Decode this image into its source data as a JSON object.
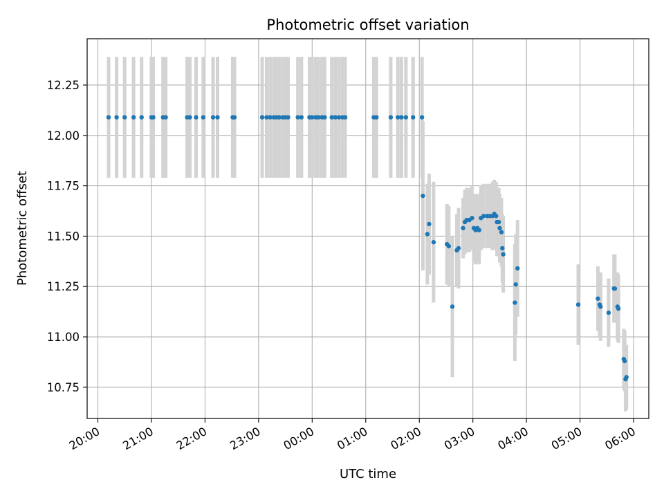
{
  "chart_data": {
    "type": "scatter",
    "title": "Photometric offset variation",
    "xlabel": "UTC time",
    "ylabel": "Photometric offset",
    "x_is_time": true,
    "x_tick_labels": [
      "20:00",
      "21:00",
      "22:00",
      "23:00",
      "00:00",
      "01:00",
      "02:00",
      "03:00",
      "04:00",
      "05:00",
      "06:00"
    ],
    "y_tick_labels": [
      "10.75",
      "11.00",
      "11.25",
      "11.50",
      "11.75",
      "12.00",
      "12.25"
    ],
    "xlim": [
      "19:48",
      "06:17"
    ],
    "ylim": [
      10.595,
      12.48
    ],
    "grid": true,
    "point_color": "#1f77b4",
    "errorbar_color": "#d3d3d3",
    "points": [
      {
        "x": "20:12",
        "y": 12.09,
        "err": 0.3
      },
      {
        "x": "20:21",
        "y": 12.09,
        "err": 0.3
      },
      {
        "x": "20:30",
        "y": 12.09,
        "err": 0.3
      },
      {
        "x": "20:40",
        "y": 12.09,
        "err": 0.3
      },
      {
        "x": "20:49",
        "y": 12.09,
        "err": 0.3
      },
      {
        "x": "21:00",
        "y": 12.09,
        "err": 0.3
      },
      {
        "x": "21:02",
        "y": 12.09,
        "err": 0.3
      },
      {
        "x": "21:13",
        "y": 12.09,
        "err": 0.3
      },
      {
        "x": "21:16",
        "y": 12.09,
        "err": 0.3
      },
      {
        "x": "21:40",
        "y": 12.09,
        "err": 0.3
      },
      {
        "x": "21:43",
        "y": 12.09,
        "err": 0.3
      },
      {
        "x": "21:50",
        "y": 12.09,
        "err": 0.3
      },
      {
        "x": "21:58",
        "y": 12.09,
        "err": 0.3
      },
      {
        "x": "22:09",
        "y": 12.09,
        "err": 0.3
      },
      {
        "x": "22:14",
        "y": 12.09,
        "err": 0.3
      },
      {
        "x": "22:31",
        "y": 12.09,
        "err": 0.3
      },
      {
        "x": "22:33",
        "y": 12.09,
        "err": 0.3
      },
      {
        "x": "23:04",
        "y": 12.09,
        "err": 0.3
      },
      {
        "x": "23:09",
        "y": 12.09,
        "err": 0.3
      },
      {
        "x": "23:13",
        "y": 12.09,
        "err": 0.3
      },
      {
        "x": "23:17",
        "y": 12.09,
        "err": 0.3
      },
      {
        "x": "23:20",
        "y": 12.09,
        "err": 0.3
      },
      {
        "x": "23:23",
        "y": 12.09,
        "err": 0.3
      },
      {
        "x": "23:27",
        "y": 12.09,
        "err": 0.3
      },
      {
        "x": "23:30",
        "y": 12.09,
        "err": 0.3
      },
      {
        "x": "23:33",
        "y": 12.09,
        "err": 0.3
      },
      {
        "x": "23:44",
        "y": 12.09,
        "err": 0.3
      },
      {
        "x": "23:48",
        "y": 12.09,
        "err": 0.3
      },
      {
        "x": "23:57",
        "y": 12.09,
        "err": 0.3
      },
      {
        "x": "00:00",
        "y": 12.09,
        "err": 0.3
      },
      {
        "x": "00:04",
        "y": 12.09,
        "err": 0.3
      },
      {
        "x": "00:07",
        "y": 12.09,
        "err": 0.3
      },
      {
        "x": "00:11",
        "y": 12.09,
        "err": 0.3
      },
      {
        "x": "00:14",
        "y": 12.09,
        "err": 0.3
      },
      {
        "x": "00:22",
        "y": 12.09,
        "err": 0.3
      },
      {
        "x": "00:26",
        "y": 12.09,
        "err": 0.3
      },
      {
        "x": "00:30",
        "y": 12.09,
        "err": 0.3
      },
      {
        "x": "00:34",
        "y": 12.09,
        "err": 0.3
      },
      {
        "x": "00:37",
        "y": 12.09,
        "err": 0.3
      },
      {
        "x": "01:09",
        "y": 12.09,
        "err": 0.3
      },
      {
        "x": "01:12",
        "y": 12.09,
        "err": 0.3
      },
      {
        "x": "01:28",
        "y": 12.09,
        "err": 0.3
      },
      {
        "x": "01:36",
        "y": 12.09,
        "err": 0.3
      },
      {
        "x": "01:40",
        "y": 12.09,
        "err": 0.3
      },
      {
        "x": "01:45",
        "y": 12.09,
        "err": 0.3
      },
      {
        "x": "01:53",
        "y": 12.09,
        "err": 0.3
      },
      {
        "x": "02:03",
        "y": 12.09,
        "err": 0.3
      },
      {
        "x": "02:04",
        "y": 11.7,
        "err": 0.37
      },
      {
        "x": "02:09",
        "y": 11.51,
        "err": 0.25
      },
      {
        "x": "02:11",
        "y": 11.56,
        "err": 0.25
      },
      {
        "x": "02:16",
        "y": 11.47,
        "err": 0.3
      },
      {
        "x": "02:31",
        "y": 11.46,
        "err": 0.2
      },
      {
        "x": "02:33",
        "y": 11.45,
        "err": 0.2
      },
      {
        "x": "02:37",
        "y": 11.15,
        "err": 0.35
      },
      {
        "x": "02:42",
        "y": 11.43,
        "err": 0.18
      },
      {
        "x": "02:44",
        "y": 11.44,
        "err": 0.2
      },
      {
        "x": "02:49",
        "y": 11.54,
        "err": 0.15
      },
      {
        "x": "02:51",
        "y": 11.57,
        "err": 0.16
      },
      {
        "x": "02:53",
        "y": 11.58,
        "err": 0.16
      },
      {
        "x": "02:56",
        "y": 11.58,
        "err": 0.16
      },
      {
        "x": "02:59",
        "y": 11.59,
        "err": 0.16
      },
      {
        "x": "03:01",
        "y": 11.54,
        "err": 0.17
      },
      {
        "x": "03:03",
        "y": 11.53,
        "err": 0.17
      },
      {
        "x": "03:05",
        "y": 11.54,
        "err": 0.17
      },
      {
        "x": "03:07",
        "y": 11.53,
        "err": 0.17
      },
      {
        "x": "03:09",
        "y": 11.59,
        "err": 0.16
      },
      {
        "x": "03:12",
        "y": 11.6,
        "err": 0.16
      },
      {
        "x": "03:16",
        "y": 11.6,
        "err": 0.16
      },
      {
        "x": "03:19",
        "y": 11.6,
        "err": 0.16
      },
      {
        "x": "03:22",
        "y": 11.6,
        "err": 0.17
      },
      {
        "x": "03:24",
        "y": 11.61,
        "err": 0.17
      },
      {
        "x": "03:26",
        "y": 11.6,
        "err": 0.17
      },
      {
        "x": "03:27",
        "y": 11.57,
        "err": 0.17
      },
      {
        "x": "03:29",
        "y": 11.57,
        "err": 0.17
      },
      {
        "x": "03:30",
        "y": 11.54,
        "err": 0.17
      },
      {
        "x": "03:32",
        "y": 11.52,
        "err": 0.17
      },
      {
        "x": "03:33",
        "y": 11.44,
        "err": 0.17
      },
      {
        "x": "03:34",
        "y": 11.41,
        "err": 0.19
      },
      {
        "x": "03:47",
        "y": 11.17,
        "err": 0.29
      },
      {
        "x": "03:48",
        "y": 11.26,
        "err": 0.25
      },
      {
        "x": "03:50",
        "y": 11.34,
        "err": 0.24
      },
      {
        "x": "04:58",
        "y": 11.16,
        "err": 0.2
      },
      {
        "x": "05:20",
        "y": 11.19,
        "err": 0.16
      },
      {
        "x": "05:22",
        "y": 11.16,
        "err": 0.16
      },
      {
        "x": "05:23",
        "y": 11.15,
        "err": 0.17
      },
      {
        "x": "05:32",
        "y": 11.12,
        "err": 0.17
      },
      {
        "x": "05:38",
        "y": 11.24,
        "err": 0.17
      },
      {
        "x": "05:39",
        "y": 11.24,
        "err": 0.17
      },
      {
        "x": "05:42",
        "y": 11.15,
        "err": 0.17
      },
      {
        "x": "05:43",
        "y": 11.14,
        "err": 0.17
      },
      {
        "x": "05:49",
        "y": 10.89,
        "err": 0.15
      },
      {
        "x": "05:50",
        "y": 10.88,
        "err": 0.15
      },
      {
        "x": "05:51",
        "y": 10.79,
        "err": 0.16
      },
      {
        "x": "05:52",
        "y": 10.8,
        "err": 0.16
      }
    ]
  }
}
